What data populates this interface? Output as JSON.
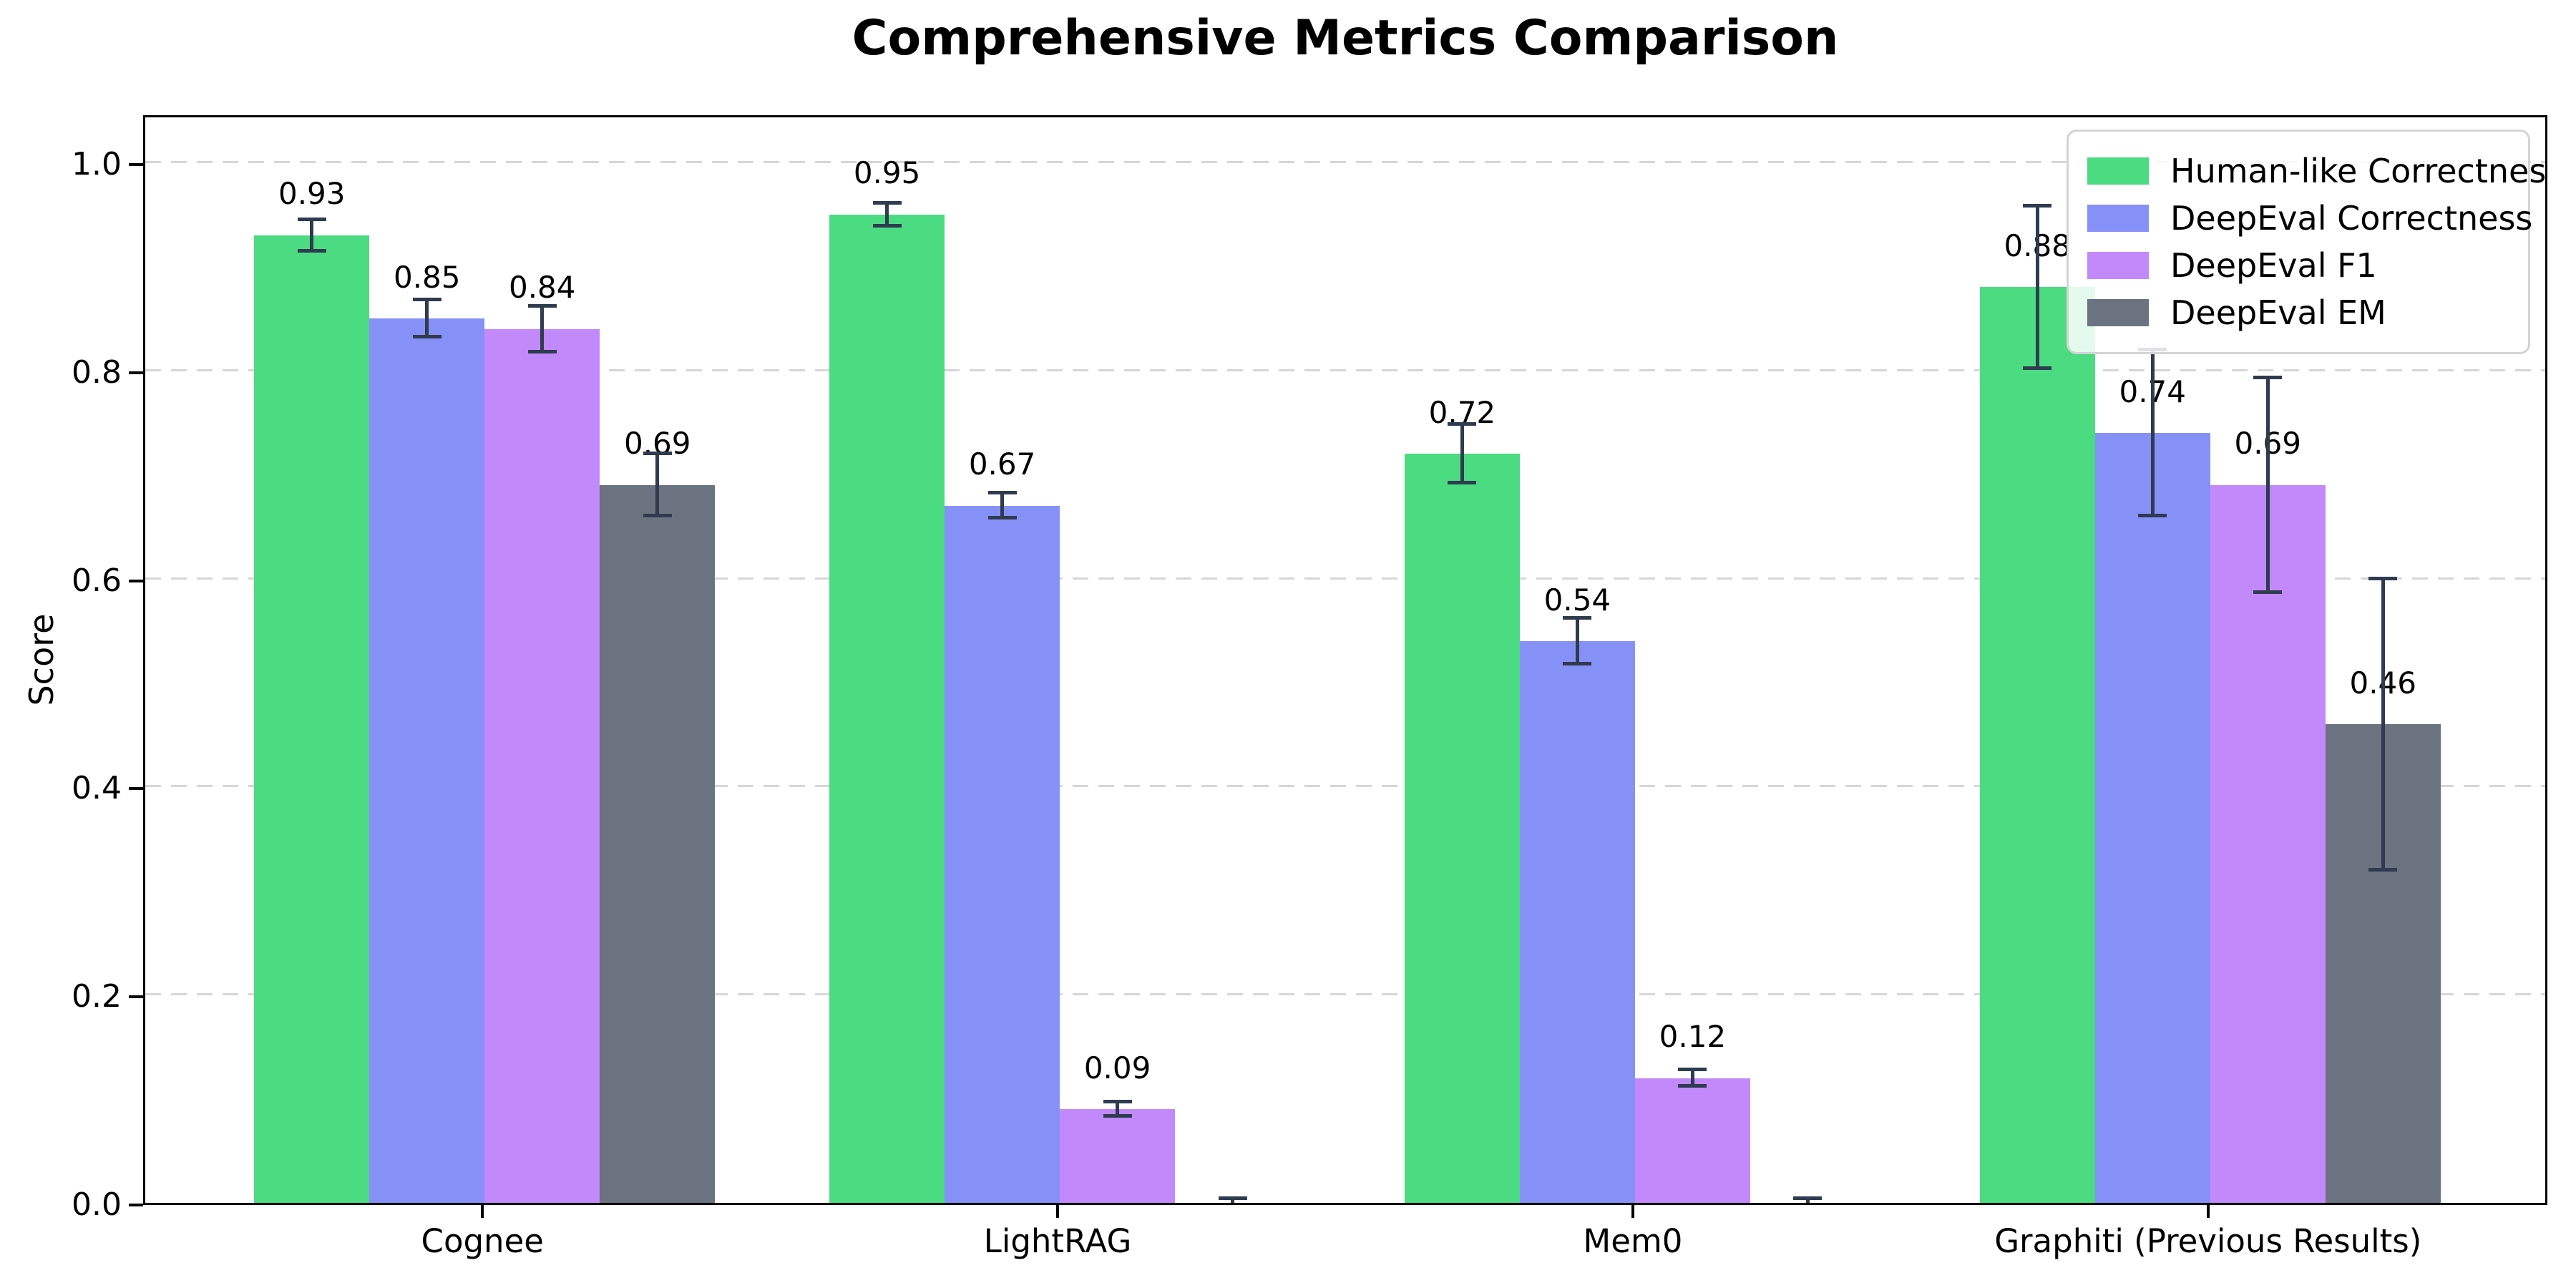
{
  "chart_data": {
    "type": "bar",
    "title": "Comprehensive Metrics Comparison",
    "xlabel": "",
    "ylabel": "Score",
    "ylim": [
      0,
      1.047
    ],
    "yticks": [
      0.0,
      0.2,
      0.4,
      0.6,
      0.8,
      1.0
    ],
    "ytick_labels": [
      "0.0",
      "0.2",
      "0.4",
      "0.6",
      "0.8",
      "1.0"
    ],
    "grid": "horizontal-dashed",
    "legend_position": "upper-right",
    "categories": [
      "Cognee",
      "LightRAG",
      "Mem0",
      "Graphiti (Previous Results)"
    ],
    "series": [
      {
        "name": "Human-like Correctness",
        "color": "#4bdb81",
        "values": [
          0.93,
          0.95,
          0.72,
          0.88
        ],
        "errors": [
          0.015,
          0.011,
          0.028,
          0.078
        ],
        "labels": [
          "0.93",
          "0.95",
          "0.72",
          "0.88"
        ]
      },
      {
        "name": "DeepEval Correctness",
        "color": "#8691f8",
        "values": [
          0.85,
          0.67,
          0.54,
          0.74
        ],
        "errors": [
          0.018,
          0.012,
          0.022,
          0.08
        ],
        "labels": [
          "0.85",
          "0.67",
          "0.54",
          "0.74"
        ]
      },
      {
        "name": "DeepEval F1",
        "color": "#c289fb",
        "values": [
          0.84,
          0.09,
          0.12,
          0.69
        ],
        "errors": [
          0.022,
          0.007,
          0.008,
          0.103
        ],
        "labels": [
          "0.84",
          "0.09",
          "0.12",
          "0.69"
        ]
      },
      {
        "name": "DeepEval EM",
        "color": "#6c7380",
        "values": [
          0.69,
          0.0,
          0.0,
          0.46
        ],
        "errors": [
          0.03,
          0.004,
          0.004,
          0.14
        ],
        "labels": [
          "0.69",
          null,
          null,
          "0.46"
        ]
      }
    ],
    "error_bar_color": "#2f3b4f",
    "grid_color": "#d6d6d6"
  }
}
